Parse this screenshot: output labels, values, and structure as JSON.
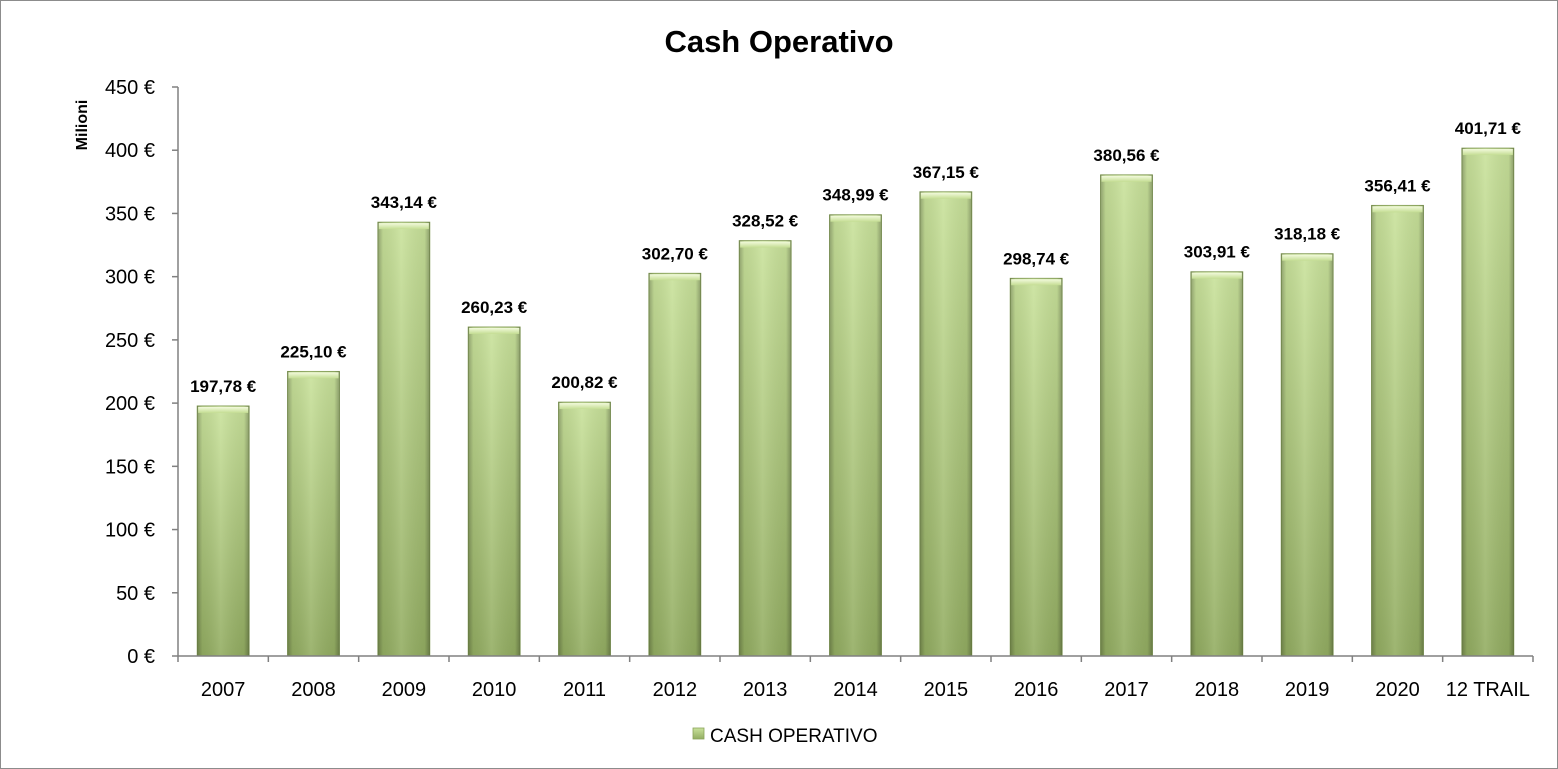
{
  "chart_data": {
    "type": "bar",
    "title": "Cash Operativo",
    "ylabel": "Milioni",
    "xlabel": "",
    "ylim": [
      0,
      450
    ],
    "ytick_step": 50,
    "ytick_labels": [
      "0 €",
      "50 €",
      "100 €",
      "150 €",
      "200 €",
      "250 €",
      "300 €",
      "350 €",
      "400 €",
      "450 €"
    ],
    "grid": false,
    "legend_position": "bottom",
    "categories": [
      "2007",
      "2008",
      "2009",
      "2010",
      "2011",
      "2012",
      "2013",
      "2014",
      "2015",
      "2016",
      "2017",
      "2018",
      "2019",
      "2020",
      "12 TRAIL"
    ],
    "series": [
      {
        "name": "CASH OPERATIVO",
        "color": "#b5cf85",
        "values": [
          197.78,
          225.1,
          343.14,
          260.23,
          200.82,
          302.7,
          328.52,
          348.99,
          367.15,
          298.74,
          380.56,
          303.91,
          318.18,
          356.41,
          401.71
        ],
        "labels": [
          "197,78 €",
          "225,10 €",
          "343,14 €",
          "260,23 €",
          "200,82 €",
          "302,70 €",
          "328,52 €",
          "348,99 €",
          "367,15 €",
          "298,74 €",
          "380,56 €",
          "303,91 €",
          "318,18 €",
          "356,41 €",
          "401,71 €"
        ]
      }
    ]
  }
}
